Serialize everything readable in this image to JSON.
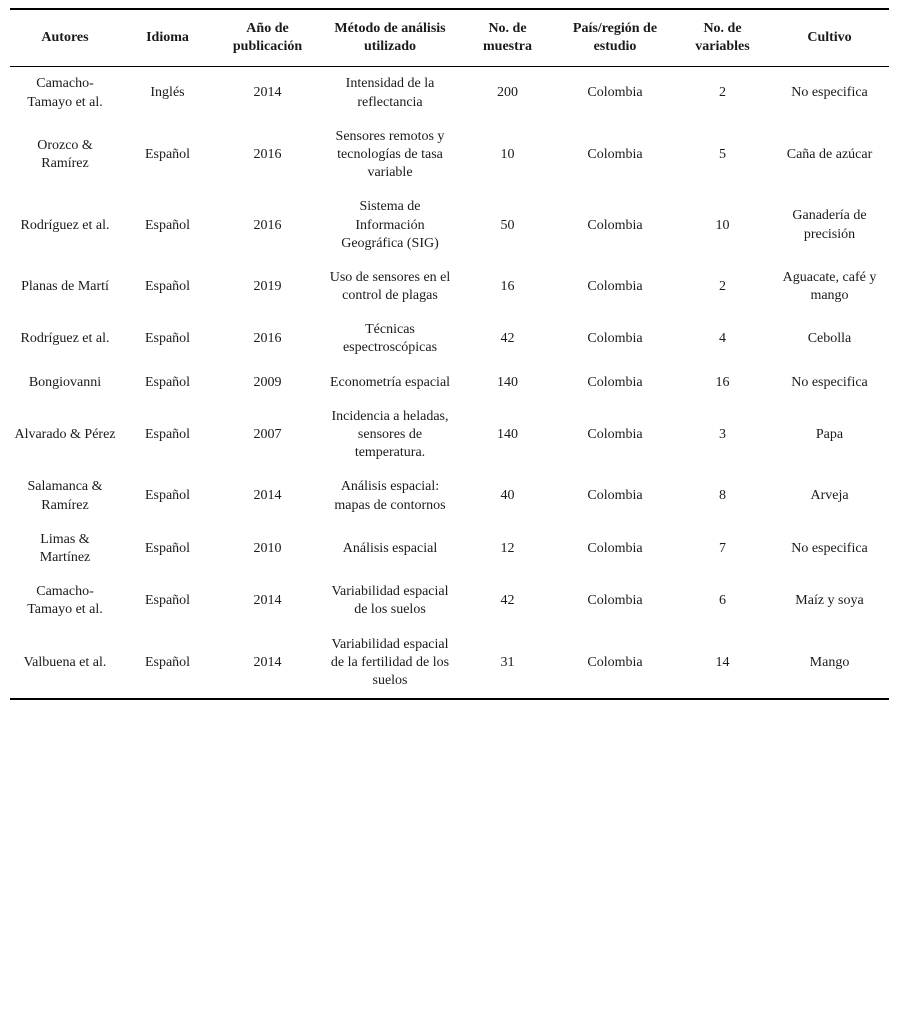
{
  "table": {
    "columns": [
      "Autores",
      "Idioma",
      "Año de publicación",
      "Método de análisis utilizado",
      "No. de muestra",
      "País/región de estudio",
      "No. de variables",
      "Cultivo"
    ],
    "rows": [
      [
        "Camacho-Tamayo et al.",
        "Inglés",
        "2014",
        "Intensidad de la reflectancia",
        "200",
        "Colombia",
        "2",
        "No especifica"
      ],
      [
        "Orozco & Ramírez",
        "Español",
        "2016",
        "Sensores remotos y tecnologías de tasa variable",
        "10",
        "Colombia",
        "5",
        "Caña de azúcar"
      ],
      [
        "Rodríguez et al.",
        "Español",
        "2016",
        "Sistema de Información Geográfica (SIG)",
        "50",
        "Colombia",
        "10",
        "Ganadería de precisión"
      ],
      [
        "Planas de Martí",
        "Español",
        "2019",
        "Uso de sensores en el control de plagas",
        "16",
        "Colombia",
        "2",
        "Aguacate, café y mango"
      ],
      [
        "Rodríguez et al.",
        "Español",
        "2016",
        "Técnicas espectroscópicas",
        "42",
        "Colombia",
        "4",
        "Cebolla"
      ],
      [
        "Bongiovanni",
        "Español",
        "2009",
        "Econometría espacial",
        "140",
        "Colombia",
        "16",
        "No especifica"
      ],
      [
        "Alvarado & Pérez",
        "Español",
        "2007",
        "Incidencia a heladas, sensores de temperatura.",
        "140",
        "Colombia",
        "3",
        "Papa"
      ],
      [
        "Salamanca & Ramírez",
        "Español",
        "2014",
        "Análisis espacial: mapas de contornos",
        "40",
        "Colombia",
        "8",
        "Arveja"
      ],
      [
        "Limas & Martínez",
        "Español",
        "2010",
        "Análisis espacial",
        "12",
        "Colombia",
        "7",
        "No especifica"
      ],
      [
        "Camacho-Tamayo et al.",
        "Español",
        "2014",
        "Variabilidad espacial de los suelos",
        "42",
        "Colombia",
        "6",
        "Maíz y soya"
      ],
      [
        "Valbuena et al.",
        "Español",
        "2014",
        "Variabilidad espacial de la fertilidad de los suelos",
        "31",
        "Colombia",
        "14",
        "Mango"
      ]
    ]
  }
}
